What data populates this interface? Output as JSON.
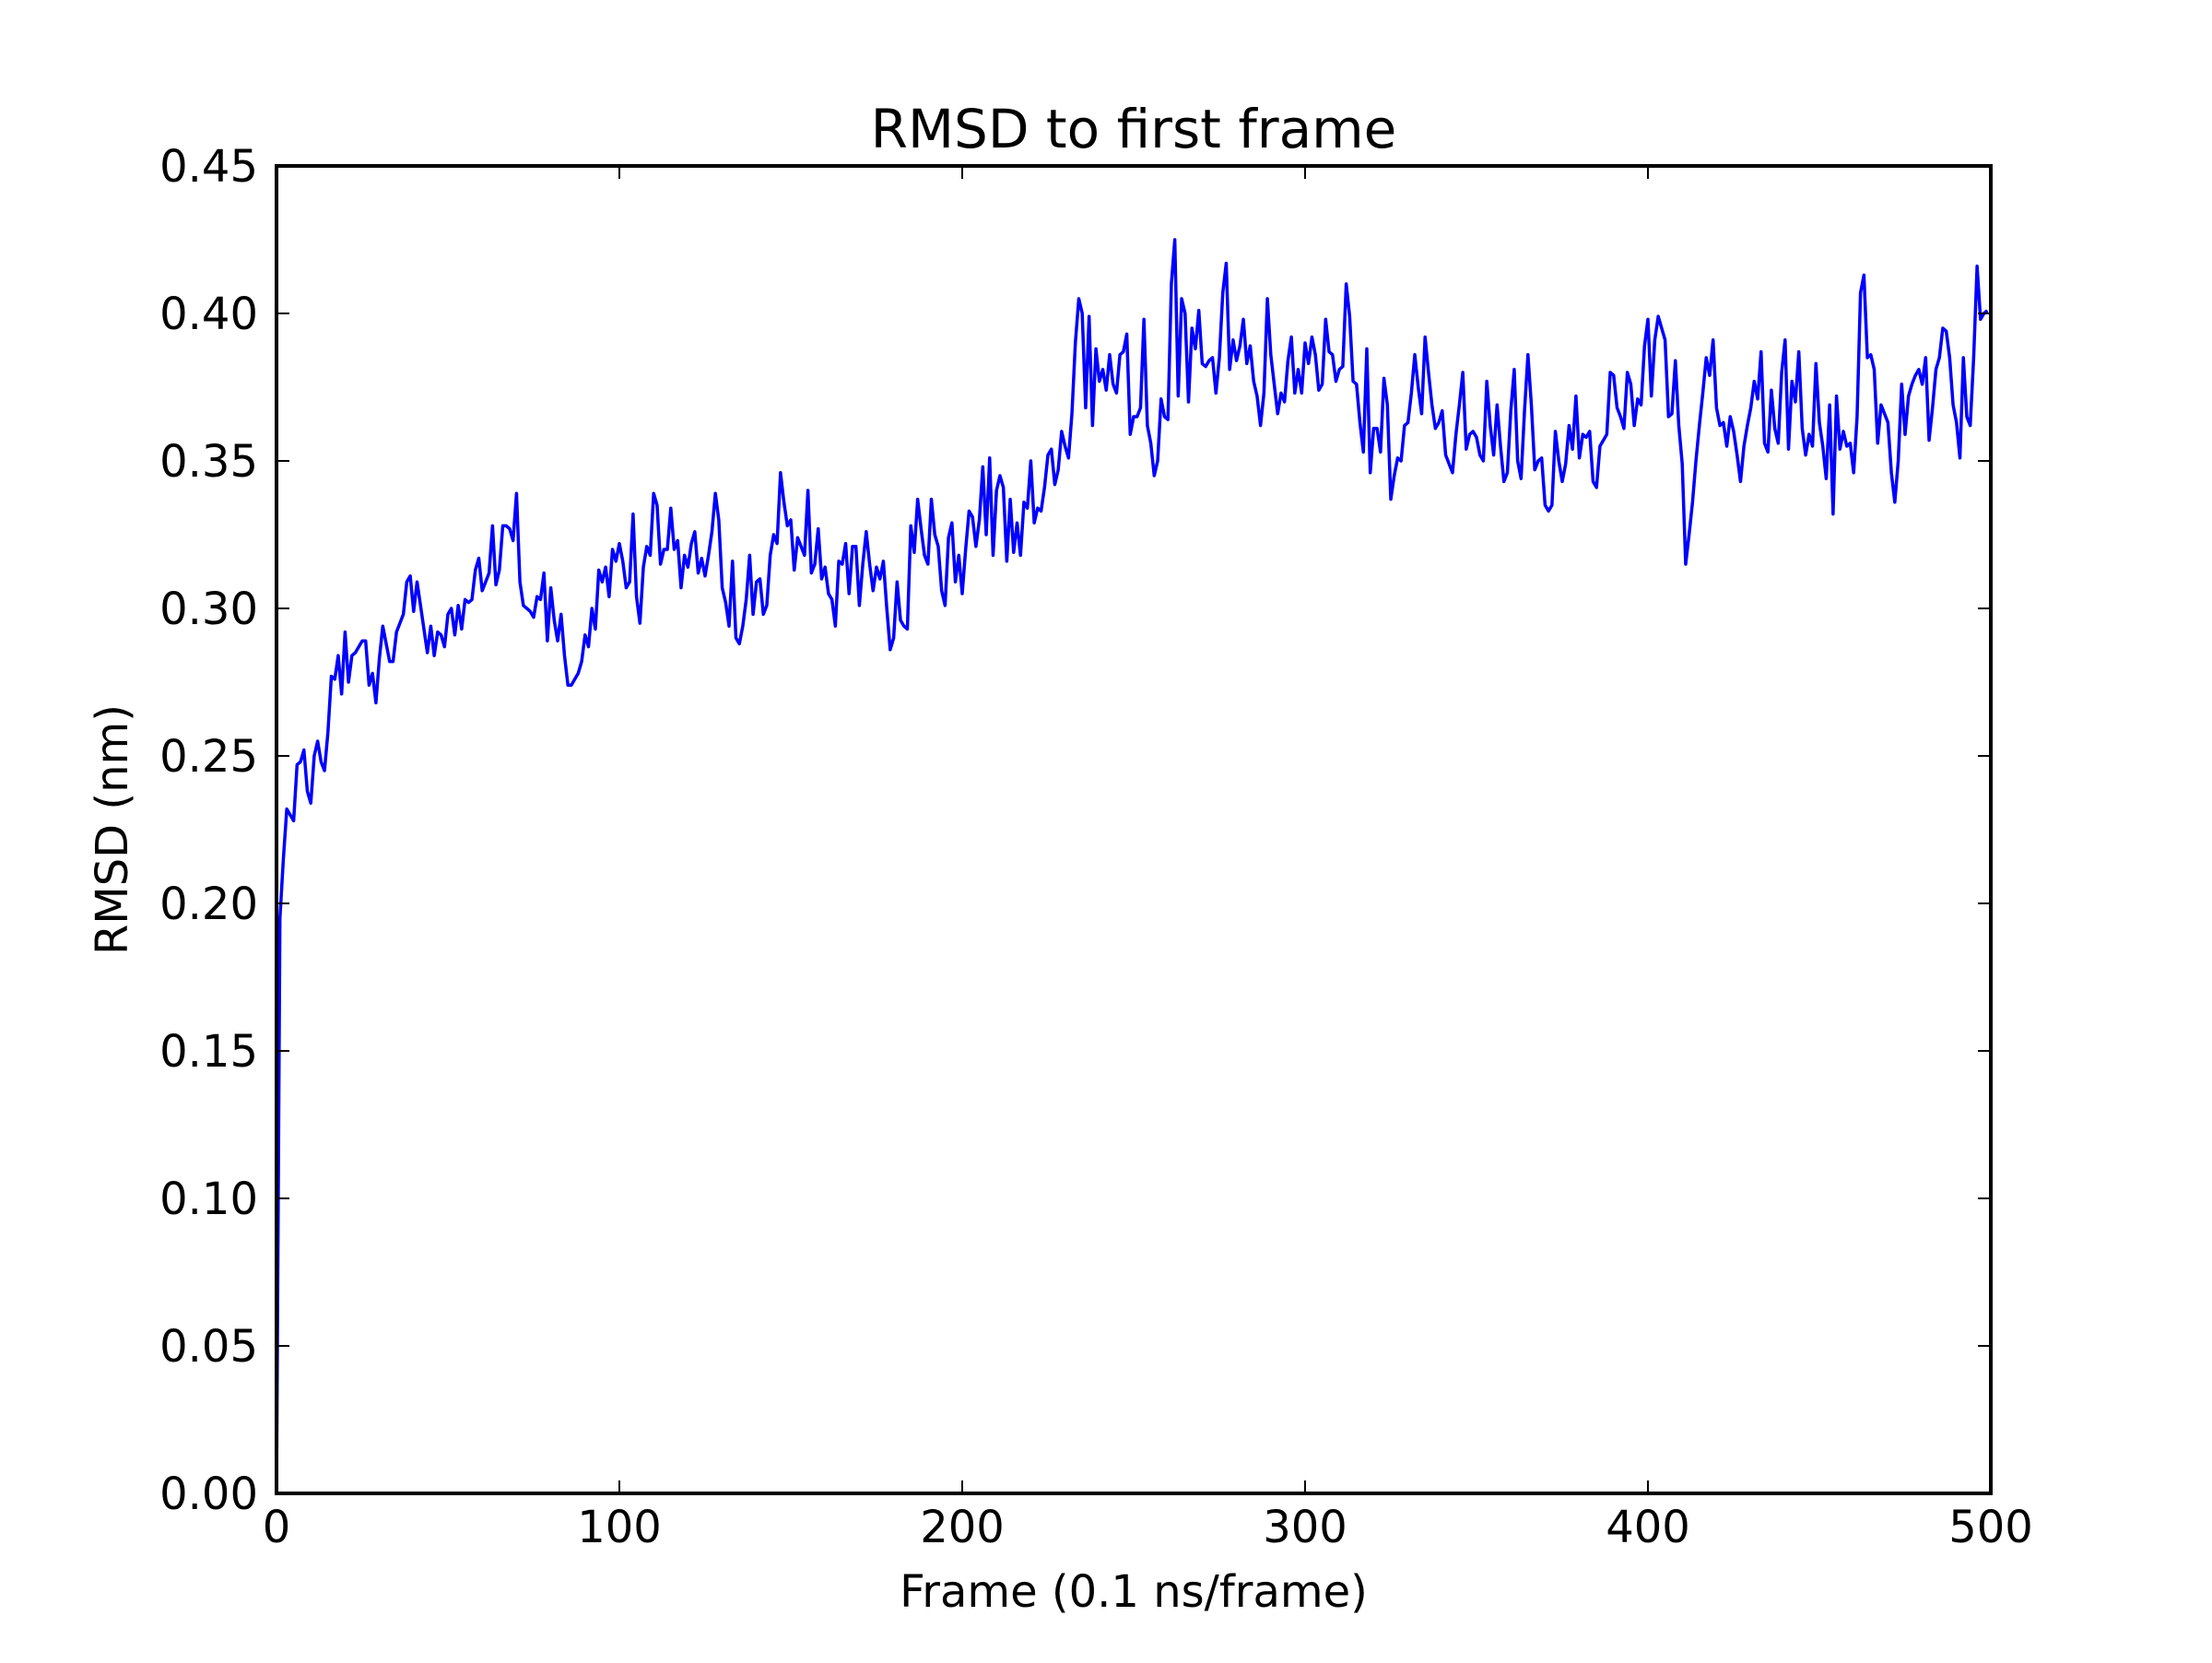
{
  "chart_data": {
    "type": "line",
    "title": "RMSD to first frame",
    "xlabel": "Frame (0.1 ns/frame)",
    "ylabel": "RMSD (nm)",
    "xlim": [
      0,
      500
    ],
    "ylim": [
      0.0,
      0.45
    ],
    "xticks": [
      0,
      100,
      200,
      300,
      400,
      500
    ],
    "xtick_labels": [
      "0",
      "100",
      "200",
      "300",
      "400",
      "500"
    ],
    "yticks": [
      0.0,
      0.05,
      0.1,
      0.15,
      0.2,
      0.25,
      0.3,
      0.35,
      0.4,
      0.45
    ],
    "ytick_labels": [
      "0.00",
      "0.05",
      "0.10",
      "0.15",
      "0.20",
      "0.25",
      "0.30",
      "0.35",
      "0.40",
      "0.45"
    ],
    "grid": false,
    "legend": null,
    "series": [
      {
        "name": "RMSD",
        "color": "#0000ff",
        "x_start": 0,
        "x_step": 1,
        "values": [
          0.0,
          0.195,
          0.215,
          0.232,
          0.23,
          0.228,
          0.247,
          0.248,
          0.252,
          0.238,
          0.234,
          0.25,
          0.255,
          0.248,
          0.245,
          0.258,
          0.277,
          0.276,
          0.284,
          0.271,
          0.292,
          0.275,
          0.284,
          0.285,
          0.287,
          0.289,
          0.289,
          0.274,
          0.278,
          0.268,
          0.283,
          0.294,
          0.288,
          0.282,
          0.282,
          0.292,
          0.295,
          0.298,
          0.309,
          0.311,
          0.299,
          0.309,
          0.301,
          0.293,
          0.285,
          0.294,
          0.284,
          0.292,
          0.291,
          0.287,
          0.298,
          0.3,
          0.291,
          0.301,
          0.293,
          0.303,
          0.302,
          0.303,
          0.313,
          0.317,
          0.306,
          0.309,
          0.312,
          0.328,
          0.308,
          0.313,
          0.328,
          0.328,
          0.327,
          0.323,
          0.339,
          0.309,
          0.301,
          0.3,
          0.299,
          0.297,
          0.304,
          0.303,
          0.312,
          0.289,
          0.307,
          0.296,
          0.289,
          0.298,
          0.284,
          0.274,
          0.274,
          0.276,
          0.278,
          0.282,
          0.291,
          0.287,
          0.3,
          0.293,
          0.313,
          0.309,
          0.314,
          0.304,
          0.32,
          0.316,
          0.322,
          0.316,
          0.307,
          0.309,
          0.332,
          0.304,
          0.295,
          0.314,
          0.321,
          0.318,
          0.339,
          0.335,
          0.315,
          0.32,
          0.32,
          0.334,
          0.32,
          0.323,
          0.307,
          0.318,
          0.314,
          0.322,
          0.326,
          0.312,
          0.317,
          0.311,
          0.318,
          0.326,
          0.339,
          0.33,
          0.307,
          0.302,
          0.294,
          0.316,
          0.29,
          0.288,
          0.294,
          0.303,
          0.318,
          0.298,
          0.309,
          0.31,
          0.298,
          0.301,
          0.318,
          0.325,
          0.322,
          0.346,
          0.336,
          0.328,
          0.33,
          0.313,
          0.324,
          0.321,
          0.318,
          0.34,
          0.312,
          0.315,
          0.327,
          0.31,
          0.314,
          0.305,
          0.303,
          0.294,
          0.316,
          0.315,
          0.322,
          0.305,
          0.321,
          0.321,
          0.301,
          0.315,
          0.326,
          0.315,
          0.306,
          0.314,
          0.31,
          0.316,
          0.3,
          0.286,
          0.29,
          0.309,
          0.296,
          0.294,
          0.293,
          0.328,
          0.319,
          0.337,
          0.327,
          0.318,
          0.315,
          0.337,
          0.325,
          0.321,
          0.306,
          0.301,
          0.324,
          0.329,
          0.309,
          0.318,
          0.305,
          0.32,
          0.333,
          0.331,
          0.321,
          0.33,
          0.348,
          0.325,
          0.351,
          0.318,
          0.34,
          0.345,
          0.341,
          0.316,
          0.337,
          0.319,
          0.329,
          0.318,
          0.336,
          0.334,
          0.35,
          0.329,
          0.334,
          0.333,
          0.341,
          0.352,
          0.354,
          0.342,
          0.347,
          0.36,
          0.355,
          0.351,
          0.366,
          0.39,
          0.405,
          0.4,
          0.368,
          0.399,
          0.362,
          0.388,
          0.377,
          0.381,
          0.374,
          0.386,
          0.376,
          0.373,
          0.386,
          0.387,
          0.393,
          0.359,
          0.365,
          0.365,
          0.368,
          0.398,
          0.362,
          0.356,
          0.345,
          0.35,
          0.371,
          0.365,
          0.364,
          0.41,
          0.425,
          0.372,
          0.405,
          0.4,
          0.37,
          0.395,
          0.388,
          0.401,
          0.383,
          0.382,
          0.384,
          0.385,
          0.373,
          0.385,
          0.407,
          0.417,
          0.381,
          0.391,
          0.384,
          0.389,
          0.398,
          0.383,
          0.389,
          0.377,
          0.372,
          0.362,
          0.373,
          0.405,
          0.386,
          0.376,
          0.366,
          0.373,
          0.37,
          0.384,
          0.392,
          0.373,
          0.381,
          0.373,
          0.39,
          0.383,
          0.392,
          0.386,
          0.374,
          0.376,
          0.398,
          0.387,
          0.386,
          0.377,
          0.381,
          0.382,
          0.41,
          0.399,
          0.377,
          0.376,
          0.363,
          0.353,
          0.388,
          0.346,
          0.361,
          0.361,
          0.353,
          0.378,
          0.369,
          0.337,
          0.345,
          0.351,
          0.35,
          0.362,
          0.363,
          0.373,
          0.386,
          0.375,
          0.366,
          0.392,
          0.38,
          0.369,
          0.361,
          0.363,
          0.367,
          0.352,
          0.349,
          0.346,
          0.359,
          0.369,
          0.38,
          0.354,
          0.359,
          0.36,
          0.358,
          0.352,
          0.35,
          0.377,
          0.362,
          0.352,
          0.369,
          0.355,
          0.343,
          0.346,
          0.367,
          0.381,
          0.35,
          0.344,
          0.367,
          0.386,
          0.369,
          0.347,
          0.35,
          0.351,
          0.335,
          0.333,
          0.335,
          0.36,
          0.35,
          0.343,
          0.349,
          0.362,
          0.354,
          0.372,
          0.351,
          0.359,
          0.358,
          0.36,
          0.343,
          0.341,
          0.355,
          0.357,
          0.359,
          0.38,
          0.379,
          0.368,
          0.365,
          0.361,
          0.38,
          0.376,
          0.362,
          0.371,
          0.369,
          0.389,
          0.398,
          0.372,
          0.391,
          0.399,
          0.395,
          0.391,
          0.365,
          0.366,
          0.384,
          0.362,
          0.349,
          0.315,
          0.325,
          0.336,
          0.35,
          0.362,
          0.373,
          0.385,
          0.379,
          0.391,
          0.368,
          0.362,
          0.363,
          0.355,
          0.365,
          0.36,
          0.352,
          0.343,
          0.355,
          0.362,
          0.368,
          0.377,
          0.371,
          0.387,
          0.356,
          0.353,
          0.374,
          0.361,
          0.356,
          0.38,
          0.391,
          0.354,
          0.377,
          0.37,
          0.387,
          0.361,
          0.352,
          0.359,
          0.355,
          0.383,
          0.363,
          0.355,
          0.344,
          0.369,
          0.332,
          0.372,
          0.354,
          0.36,
          0.355,
          0.356,
          0.346,
          0.365,
          0.407,
          0.413,
          0.385,
          0.386,
          0.381,
          0.356,
          0.369,
          0.366,
          0.363,
          0.346,
          0.336,
          0.35,
          0.376,
          0.359,
          0.372,
          0.376,
          0.379,
          0.381,
          0.376,
          0.385,
          0.357,
          0.368,
          0.381,
          0.385,
          0.395,
          0.394,
          0.385,
          0.369,
          0.363,
          0.351,
          0.385,
          0.365,
          0.362,
          0.385,
          0.416,
          0.398,
          0.4,
          0.401
        ]
      }
    ]
  }
}
